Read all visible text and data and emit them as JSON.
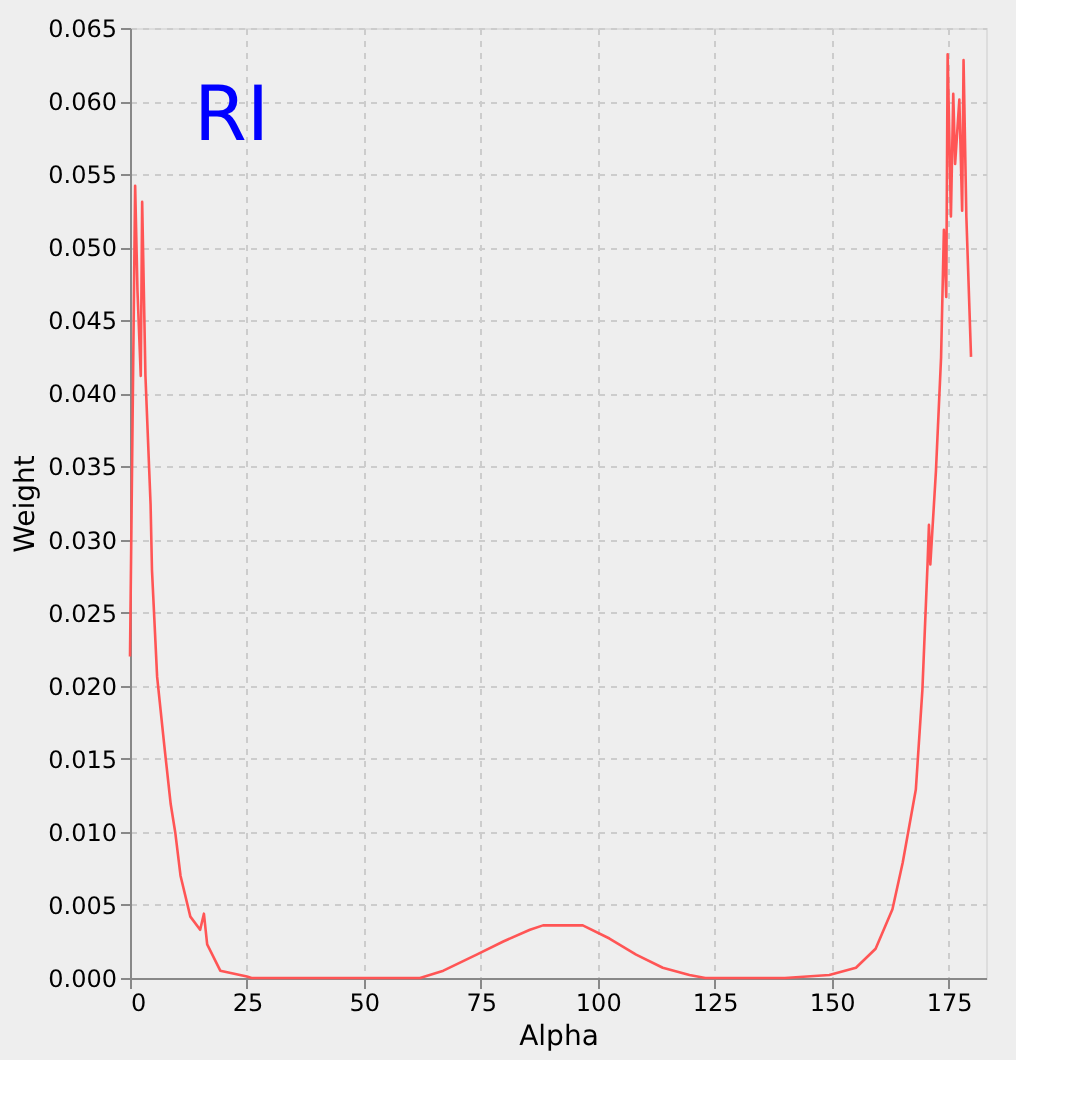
{
  "chart_data": {
    "type": "line",
    "xlabel": "Alpha",
    "ylabel": "Weight",
    "annotations": [
      "RI"
    ],
    "xlim": [
      0,
      183
    ],
    "xticks": [
      0,
      25,
      50,
      75,
      100,
      125,
      150,
      175
    ],
    "ylim": [
      0,
      0.065
    ],
    "yticks": [
      {
        "value": 0,
        "label": "0.000"
      },
      0.005,
      {
        "value": 0.01,
        "label": "0.010"
      },
      0.015,
      {
        "value": 0.02,
        "label": "0.020"
      },
      0.025,
      {
        "value": 0.03,
        "label": "0.030"
      },
      0.035,
      {
        "value": 0.04,
        "label": "0.040"
      },
      0.045,
      {
        "value": 0.05,
        "label": "0.050"
      },
      0.055,
      {
        "value": 0.06,
        "label": "0.060"
      },
      0.065
    ],
    "grid": true,
    "marker": "none",
    "line_style": "solid",
    "series": [
      {
        "color": "#ff5555",
        "x": [
          0,
          1.1,
          1.6,
          2.3,
          2.6,
          3.3,
          4.4,
          4.7,
          5.8,
          7.3,
          8.7,
          9.7,
          10.8,
          12.9,
          15,
          15.8,
          16.5,
          19.3,
          25,
          26,
          40,
          62,
          67,
          74.1,
          79.8,
          85.5,
          88.3,
          96.8,
          102.5,
          108.2,
          113.9,
          119.6,
          123,
          140,
          149.5,
          155.2,
          159.4,
          163,
          165.2,
          168,
          169.4,
          170.5,
          170.8,
          171.1,
          172.3,
          173.4,
          174,
          174.5,
          174.8,
          175.5,
          176,
          176.4,
          177.3,
          177.9,
          178.2,
          178.8,
          179.8
        ],
        "values": [
          0.022,
          0.0542,
          0.047,
          0.0412,
          0.0531,
          0.0412,
          0.0324,
          0.0279,
          0.0206,
          0.016,
          0.0119,
          0.0099,
          0.007,
          0.0042,
          0.0033,
          0.0044,
          0.0023,
          0.0005,
          0.0001,
          0,
          0,
          0,
          0.0005,
          0.0016,
          0.0025,
          0.0033,
          0.0036,
          0.0036,
          0.0027,
          0.0016,
          0.0007,
          0.0002,
          0,
          0,
          0.0002,
          0.0007,
          0.002,
          0.0047,
          0.0079,
          0.0129,
          0.0197,
          0.0283,
          0.031,
          0.0283,
          0.0347,
          0.0425,
          0.0512,
          0.0466,
          0.0632,
          0.0521,
          0.0605,
          0.0557,
          0.0601,
          0.0525,
          0.0628,
          0.0521,
          0.0425
        ]
      }
    ]
  }
}
